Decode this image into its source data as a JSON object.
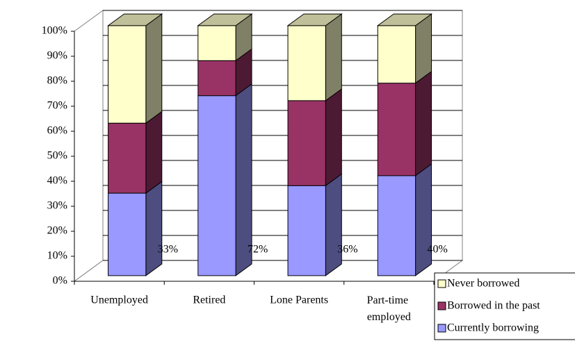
{
  "chart_data": {
    "type": "bar3d_stacked",
    "categories": [
      "Unemployed",
      "Retired",
      "Lone Parents",
      "Part-time employed"
    ],
    "series": [
      {
        "name": "Currently borrowing",
        "color": "#9999ff",
        "values": [
          33,
          72,
          36,
          40
        ],
        "value_labels": [
          "33%",
          "72%",
          "36%",
          "40%"
        ]
      },
      {
        "name": "Borrowed in the past",
        "color": "#993366",
        "values": [
          28,
          14,
          34,
          37
        ]
      },
      {
        "name": "Never borrowed",
        "color": "#ffffcc",
        "values": [
          39,
          14,
          30,
          23
        ]
      }
    ],
    "ylim": [
      0,
      100
    ],
    "yticks": [
      {
        "value": 0,
        "label": "0%"
      },
      {
        "value": 10,
        "label": "10%"
      },
      {
        "value": 20,
        "label": "20%"
      },
      {
        "value": 30,
        "label": "30%"
      },
      {
        "value": 40,
        "label": "40%"
      },
      {
        "value": 50,
        "label": "50%"
      },
      {
        "value": 60,
        "label": "60%"
      },
      {
        "value": 70,
        "label": "70%"
      },
      {
        "value": 80,
        "label": "80%"
      },
      {
        "value": 90,
        "label": "90%"
      },
      {
        "value": 100,
        "label": "100%"
      }
    ],
    "grid": true,
    "legend": "bottom-right"
  }
}
